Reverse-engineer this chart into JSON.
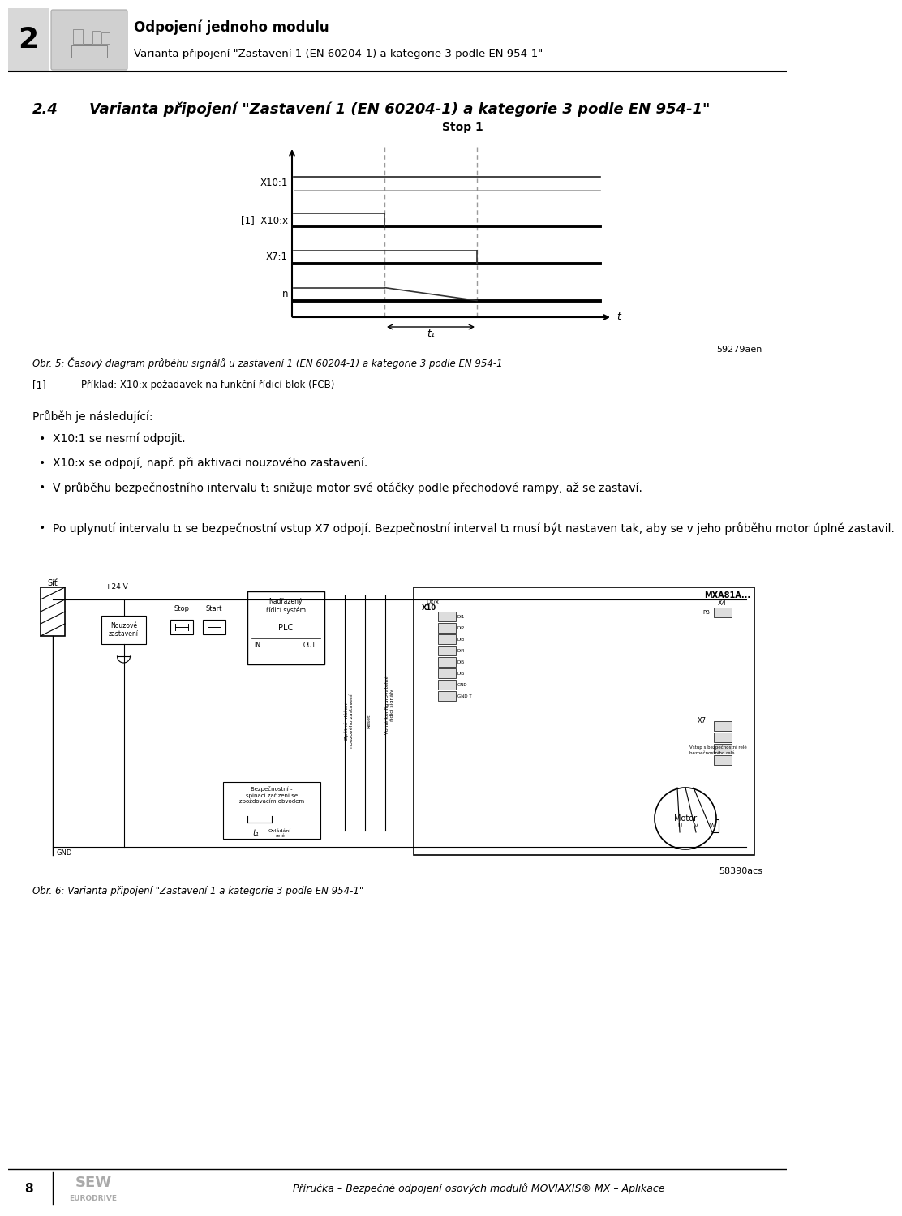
{
  "page_bg": "#ffffff",
  "header_number": "2",
  "header_title_bold": "Odpojení jednoho modulu",
  "header_title_normal": "Varianta připojení \"Zastavení 1 (EN 60204-1) a kategorie 3 podle EN 954-1\"",
  "section_number": "2.4",
  "section_title": "Varianta připojení \"Zastavení 1 (EN 60204-1) a kategorie 3 podle EN 954-1\"",
  "signal_title": "Stop 1",
  "signal_labels": [
    "X10:1",
    "[1]  X10:x",
    "X7:1",
    "n"
  ],
  "caption_num": "59279aen",
  "caption_text": "Obr. 5: Časový diagram průběhu signálů u zastavení 1 (EN 60204-1) a kategorie 3 podle EN 954-1",
  "footnote_num": "[1]",
  "footnote_text": "Příklad: X10:x požadavek na funkční řídicí blok (FCB)",
  "body_intro": "Průběh je následující:",
  "bullets": [
    "X10:1 se nesmí odpojit.",
    "X10:x se odpojí, např. při aktivaci nouzového zastavení.",
    "V průběhu bezpečnostního intervalu t₁ snižuje motor své otáčky podle přechodové rampy, až se zastaví.",
    "Po uplynutí intervalu t₁ se bezpečnostní vstup X7 odpojí. Bezpečnostní interval t₁ musí být nastaven tak, aby se v jeho průběhu motor úplně zastavil."
  ],
  "diagram_caption": "Obr. 6: Varianta připojení \"Zastavení 1 a kategorie 3 podle EN 954-1\"",
  "diagram_ref": "58390acs",
  "footer_page": "8",
  "footer_text": "Příručka – Bezpečné odpojení osových modulů MOVIAXIS® MX – Aplikace"
}
